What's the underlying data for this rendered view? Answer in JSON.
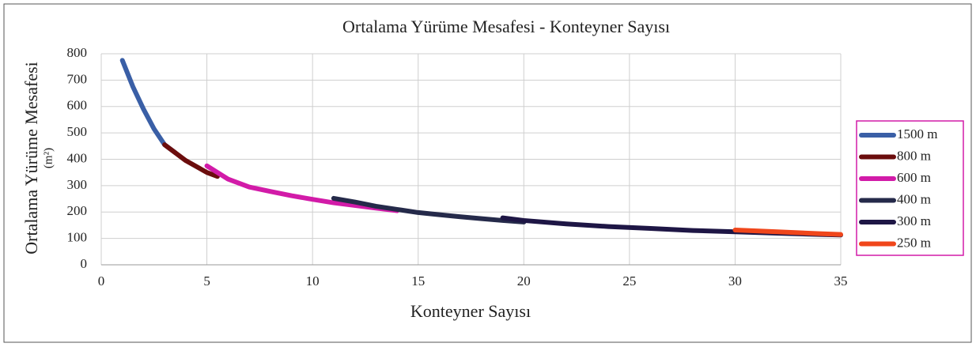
{
  "chart_data": {
    "type": "line",
    "title": "Ortalama Yürüme Mesafesi - Konteyner Sayısı",
    "xlabel": "Konteyner  Sayısı",
    "ylabel": "Ortalama Yürüme Mesafesi",
    "ylabel_unit": "(m²)",
    "xlim": [
      0,
      35
    ],
    "xticks": [
      0,
      5,
      10,
      15,
      20,
      25,
      30,
      35
    ],
    "ylim": [
      0,
      800
    ],
    "yticks": [
      0,
      100,
      200,
      300,
      400,
      500,
      600,
      700,
      800
    ],
    "grid": true,
    "legend": "right",
    "series": [
      {
        "name": "1500 m",
        "color": "#3a5fa6",
        "x": [
          1,
          1.5,
          2,
          2.5,
          3,
          3.5
        ],
        "values": [
          775,
          675,
          590,
          515,
          455,
          425
        ]
      },
      {
        "name": "800 m",
        "color": "#6b0d0d",
        "x": [
          3,
          4,
          5,
          5.5
        ],
        "values": [
          455,
          395,
          350,
          335
        ]
      },
      {
        "name": "600 m",
        "color": "#d21ba8",
        "x": [
          5,
          6,
          7,
          8,
          9,
          10,
          11,
          12,
          13,
          14
        ],
        "values": [
          375,
          325,
          295,
          278,
          262,
          248,
          235,
          225,
          215,
          205
        ]
      },
      {
        "name": "400 m",
        "color": "#252a4a",
        "x": [
          11,
          12,
          13,
          14,
          15,
          16,
          17,
          18,
          19,
          20
        ],
        "values": [
          252,
          238,
          222,
          210,
          198,
          190,
          182,
          175,
          168,
          162
        ]
      },
      {
        "name": "300 m",
        "color": "#1e1645",
        "x": [
          19,
          20,
          22,
          24,
          26,
          28,
          30,
          32,
          34,
          35
        ],
        "values": [
          178,
          168,
          155,
          145,
          138,
          130,
          125,
          120,
          115,
          113
        ]
      },
      {
        "name": "250 m",
        "color": "#f0461b",
        "x": [
          30,
          32,
          34,
          35
        ],
        "values": [
          132,
          125,
          118,
          115
        ]
      }
    ]
  }
}
